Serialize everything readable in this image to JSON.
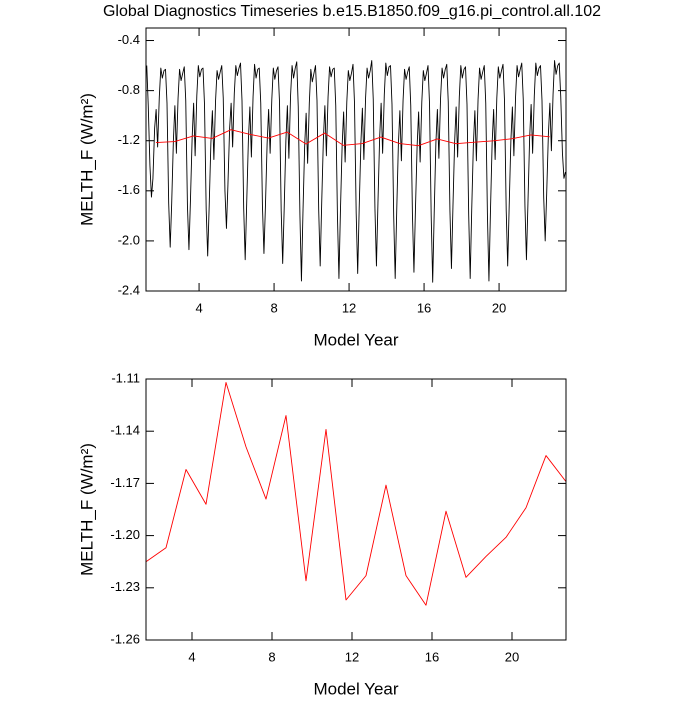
{
  "chart_data": [
    {
      "type": "line",
      "title": "Global Diagnostics Timeseries b.e15.B1850.f09_g16.pi_control.all.102",
      "xlabel": "Model Year",
      "ylabel": "MELTH_F (W/m²)",
      "xlim": [
        1.17,
        23.57
      ],
      "ylim": [
        -2.4,
        -0.3
      ],
      "xticks": [
        4,
        8,
        12,
        16,
        20
      ],
      "yticks": [
        -0.4,
        -0.8,
        -1.2,
        -1.6,
        {
          "value": -2,
          "label": "-2.0"
        },
        -2.4
      ],
      "series": [
        {
          "color": "#000000",
          "x": [
            1.21,
            1.29,
            1.38,
            1.46,
            1.54,
            1.63,
            1.71,
            1.79,
            1.88,
            1.96,
            2.04,
            2.13,
            2.21,
            2.29,
            2.38,
            2.46,
            2.54,
            2.63,
            2.71,
            2.79,
            2.88,
            2.96,
            3.04,
            3.13,
            3.21,
            3.29,
            3.38,
            3.46,
            3.54,
            3.63,
            3.71,
            3.79,
            3.88,
            3.96,
            4.04,
            4.13,
            4.21,
            4.29,
            4.38,
            4.46,
            4.54,
            4.63,
            4.71,
            4.79,
            4.88,
            4.96,
            5.04,
            5.13,
            5.21,
            5.29,
            5.38,
            5.46,
            5.54,
            5.63,
            5.71,
            5.79,
            5.88,
            5.96,
            6.04,
            6.13,
            6.21,
            6.29,
            6.38,
            6.46,
            6.54,
            6.63,
            6.71,
            6.79,
            6.88,
            6.96,
            7.04,
            7.13,
            7.21,
            7.29,
            7.38,
            7.46,
            7.54,
            7.63,
            7.71,
            7.79,
            7.88,
            7.96,
            8.04,
            8.13,
            8.21,
            8.29,
            8.38,
            8.46,
            8.54,
            8.63,
            8.71,
            8.79,
            8.88,
            8.96,
            9.04,
            9.13,
            9.21,
            9.29,
            9.38,
            9.46,
            9.54,
            9.63,
            9.71,
            9.79,
            9.88,
            9.96,
            10.04,
            10.13,
            10.21,
            10.29,
            10.38,
            10.46,
            10.54,
            10.63,
            10.71,
            10.79,
            10.88,
            10.96,
            11.04,
            11.13,
            11.21,
            11.29,
            11.38,
            11.46,
            11.54,
            11.63,
            11.71,
            11.79,
            11.88,
            11.96,
            12.04,
            12.13,
            12.21,
            12.29,
            12.38,
            12.46,
            12.54,
            12.63,
            12.71,
            12.79,
            12.88,
            12.96,
            13.04,
            13.13,
            13.21,
            13.29,
            13.38,
            13.46,
            13.54,
            13.63,
            13.71,
            13.79,
            13.88,
            13.96,
            14.04,
            14.13,
            14.21,
            14.29,
            14.38,
            14.46,
            14.54,
            14.63,
            14.71,
            14.79,
            14.88,
            14.96,
            15.04,
            15.13,
            15.21,
            15.29,
            15.38,
            15.46,
            15.54,
            15.63,
            15.71,
            15.79,
            15.88,
            15.96,
            16.04,
            16.13,
            16.21,
            16.29,
            16.38,
            16.46,
            16.54,
            16.63,
            16.71,
            16.79,
            16.88,
            16.96,
            17.04,
            17.13,
            17.21,
            17.29,
            17.38,
            17.46,
            17.54,
            17.63,
            17.71,
            17.79,
            17.88,
            17.96,
            18.04,
            18.13,
            18.21,
            18.29,
            18.38,
            18.46,
            18.54,
            18.63,
            18.71,
            18.79,
            18.88,
            18.96,
            19.04,
            19.13,
            19.21,
            19.29,
            19.38,
            19.46,
            19.54,
            19.63,
            19.71,
            19.79,
            19.88,
            19.96,
            20.04,
            20.13,
            20.21,
            20.29,
            20.38,
            20.46,
            20.54,
            20.63,
            20.71,
            20.79,
            20.88,
            20.96,
            21.04,
            21.13,
            21.21,
            21.29,
            21.38,
            21.46,
            21.54,
            21.63,
            21.71,
            21.79,
            21.88,
            21.96,
            22.04,
            22.13,
            22.21,
            22.29,
            22.38,
            22.46,
            22.54,
            22.63,
            22.71,
            22.79,
            22.88,
            22.96,
            23.04,
            23.13,
            23.21,
            23.29,
            23.38,
            23.46,
            23.54
          ],
          "values": [
            -0.6,
            -0.92,
            -1.4,
            -1.65,
            -1.5,
            -1.1,
            -0.95,
            -1.25,
            -0.85,
            -0.62,
            -0.7,
            -0.64,
            -0.63,
            -0.9,
            -1.7,
            -2.05,
            -1.7,
            -1.2,
            -0.92,
            -1.3,
            -0.86,
            -0.63,
            -0.72,
            -0.66,
            -0.61,
            -0.88,
            -1.72,
            -2.07,
            -1.68,
            -1.18,
            -0.9,
            -1.32,
            -0.84,
            -0.6,
            -0.69,
            -0.63,
            -0.62,
            -0.91,
            -1.75,
            -2.12,
            -1.72,
            -1.22,
            -0.96,
            -1.35,
            -0.88,
            -0.64,
            -0.71,
            -0.65,
            -0.6,
            -0.86,
            -1.6,
            -1.9,
            -1.55,
            -1.1,
            -0.9,
            -1.25,
            -0.82,
            -0.6,
            -0.68,
            -0.62,
            -0.58,
            -0.88,
            -1.74,
            -2.15,
            -1.7,
            -1.2,
            -0.93,
            -1.33,
            -0.85,
            -0.59,
            -0.7,
            -0.63,
            -0.62,
            -0.9,
            -1.72,
            -2.1,
            -1.72,
            -1.22,
            -0.95,
            -1.3,
            -0.87,
            -0.62,
            -0.71,
            -0.64,
            -0.61,
            -0.89,
            -1.76,
            -2.18,
            -1.74,
            -1.2,
            -0.92,
            -1.34,
            -0.84,
            -0.6,
            -0.7,
            -0.62,
            -0.57,
            -0.93,
            -1.8,
            -2.32,
            -1.78,
            -1.25,
            -0.98,
            -1.38,
            -0.9,
            -0.63,
            -0.73,
            -0.66,
            -0.6,
            -0.88,
            -1.75,
            -2.2,
            -1.7,
            -1.19,
            -0.92,
            -1.32,
            -0.85,
            -0.61,
            -0.69,
            -0.63,
            -0.62,
            -0.92,
            -1.8,
            -2.3,
            -1.76,
            -1.24,
            -0.97,
            -1.37,
            -0.89,
            -0.64,
            -0.72,
            -0.66,
            -0.59,
            -0.9,
            -1.78,
            -2.26,
            -1.74,
            -1.22,
            -0.94,
            -1.35,
            -0.86,
            -0.62,
            -0.7,
            -0.64,
            -0.56,
            -0.87,
            -1.74,
            -2.2,
            -1.7,
            -1.18,
            -0.9,
            -1.3,
            -0.83,
            -0.58,
            -0.68,
            -0.61,
            -0.6,
            -0.91,
            -1.8,
            -2.3,
            -1.77,
            -1.23,
            -0.96,
            -1.36,
            -0.88,
            -0.63,
            -0.71,
            -0.65,
            -0.61,
            -0.92,
            -1.79,
            -2.25,
            -1.75,
            -1.24,
            -0.97,
            -1.37,
            -0.89,
            -0.64,
            -0.72,
            -0.66,
            -0.6,
            -0.9,
            -1.8,
            -2.33,
            -1.78,
            -1.22,
            -0.95,
            -1.34,
            -0.86,
            -0.62,
            -0.7,
            -0.63,
            -0.59,
            -0.89,
            -1.76,
            -2.22,
            -1.73,
            -1.21,
            -0.93,
            -1.33,
            -0.85,
            -0.6,
            -0.7,
            -0.63,
            -0.61,
            -0.91,
            -1.79,
            -2.3,
            -1.76,
            -1.23,
            -0.96,
            -1.36,
            -0.87,
            -0.62,
            -0.71,
            -0.65,
            -0.6,
            -0.9,
            -1.8,
            -2.32,
            -1.77,
            -1.22,
            -0.95,
            -1.35,
            -0.86,
            -0.61,
            -0.7,
            -0.64,
            -0.59,
            -0.88,
            -1.75,
            -2.2,
            -1.72,
            -1.2,
            -0.93,
            -1.32,
            -0.85,
            -0.6,
            -0.69,
            -0.63,
            -0.58,
            -0.87,
            -1.72,
            -2.15,
            -1.7,
            -1.18,
            -0.91,
            -1.3,
            -0.84,
            -0.58,
            -0.68,
            -0.62,
            -0.6,
            -0.88,
            -1.65,
            -2.0,
            -1.62,
            -1.15,
            -0.9,
            -1.28,
            -0.83,
            -0.56,
            -0.67,
            -0.6,
            -0.58,
            -0.85,
            -1.3,
            -1.5,
            -1.45
          ]
        },
        {
          "color": "#ff0000",
          "x": [
            1.7,
            2.7,
            3.7,
            4.7,
            5.7,
            6.7,
            7.7,
            8.7,
            9.7,
            10.7,
            11.7,
            12.7,
            13.7,
            14.7,
            15.7,
            16.7,
            17.7,
            18.7,
            19.7,
            20.7,
            21.7,
            22.7
          ],
          "values": [
            -1.215,
            -1.207,
            -1.162,
            -1.182,
            -1.112,
            -1.149,
            -1.179,
            -1.131,
            -1.226,
            -1.139,
            -1.237,
            -1.223,
            -1.171,
            -1.223,
            -1.24,
            -1.186,
            -1.224,
            -1.212,
            -1.201,
            -1.184,
            -1.154,
            -1.169
          ]
        }
      ]
    },
    {
      "type": "line",
      "xlabel": "Model Year",
      "ylabel": "MELTH_F (W/m²)",
      "xlim": [
        1.7,
        22.7
      ],
      "ylim": [
        -1.26,
        -1.11
      ],
      "xticks": [
        4,
        8,
        12,
        16,
        20
      ],
      "yticks": [
        -1.11,
        -1.14,
        -1.17,
        {
          "value": -1.2,
          "label": "-1.20"
        },
        -1.23,
        -1.26
      ],
      "series": [
        {
          "color": "#ff0000",
          "x": [
            1.7,
            2.7,
            3.7,
            4.7,
            5.7,
            6.7,
            7.7,
            8.7,
            9.7,
            10.7,
            11.7,
            12.7,
            13.7,
            14.7,
            15.7,
            16.7,
            17.7,
            18.7,
            19.7,
            20.7,
            21.7,
            22.7
          ],
          "values": [
            -1.215,
            -1.207,
            -1.162,
            -1.182,
            -1.112,
            -1.149,
            -1.179,
            -1.131,
            -1.226,
            -1.139,
            -1.237,
            -1.223,
            -1.171,
            -1.223,
            -1.24,
            -1.186,
            -1.224,
            -1.212,
            -1.201,
            -1.184,
            -1.154,
            -1.169
          ]
        }
      ]
    }
  ]
}
